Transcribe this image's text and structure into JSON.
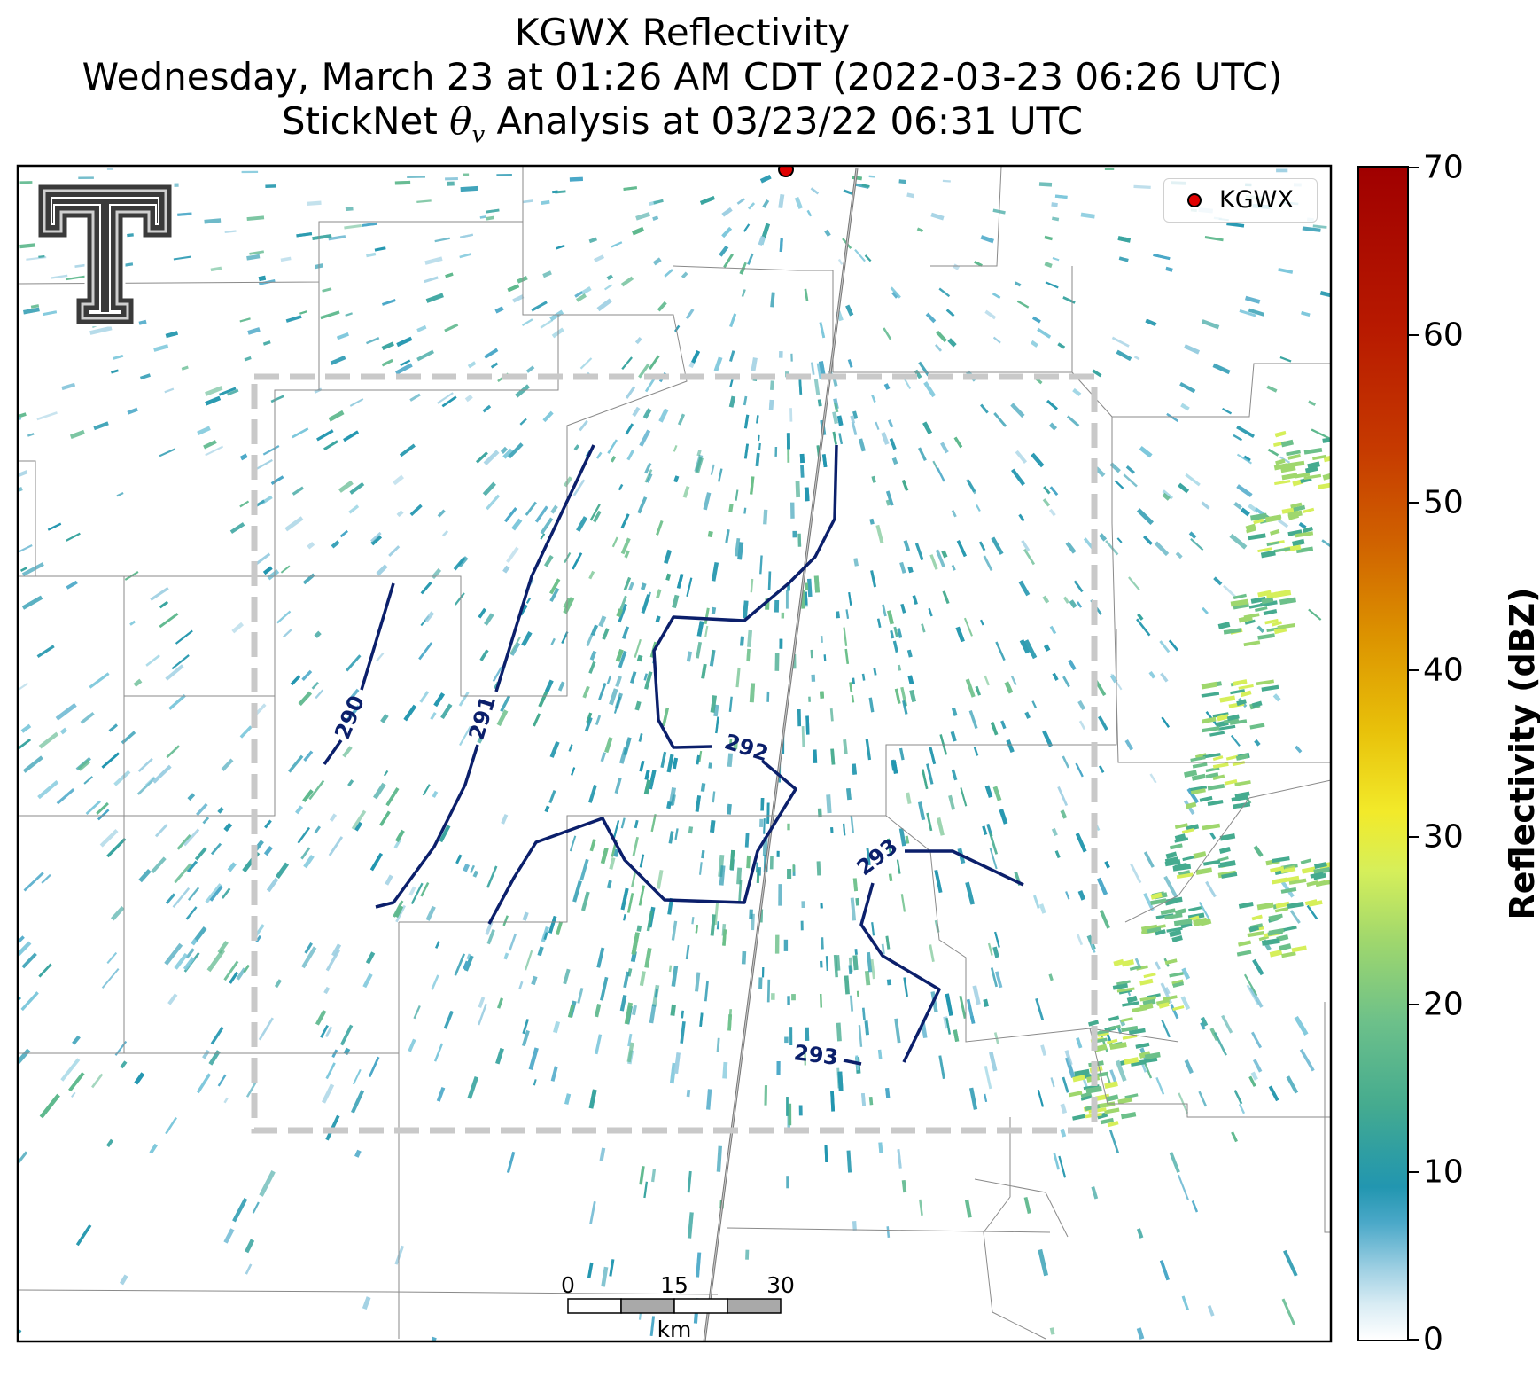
{
  "title": {
    "line1": "KGWX Reflectivity",
    "line2": "Wednesday, March 23 at 01:26 AM CDT (2022-03-23 06:26 UTC)",
    "line3_prefix": "StickNet ",
    "line3_theta": "θ",
    "line3_sub": "v",
    "line3_suffix": " Analysis at 03/23/22 06:31 UTC"
  },
  "legend": {
    "label": "KGWX",
    "marker_color": "#e00000"
  },
  "colorbar": {
    "label": "Reflectivity (dBZ)",
    "min": 0,
    "max": 70,
    "ticks": [
      "0",
      "10",
      "20",
      "30",
      "40",
      "50",
      "60",
      "70"
    ]
  },
  "contours": {
    "color": "#0b1f6b",
    "labels": [
      "290",
      "291",
      "292",
      "293",
      "293"
    ]
  },
  "scale_bar": {
    "ticks": [
      "0",
      "15",
      "30"
    ],
    "unit": "km"
  },
  "colors": {
    "analysis_box": "#c8c8c8",
    "county_lines": "#8a8a8a",
    "radar_echo": "#2a9ab0"
  },
  "icons": {
    "logo": "texas-tech-double-t-logo",
    "radar_site": "radar-site-icon"
  }
}
